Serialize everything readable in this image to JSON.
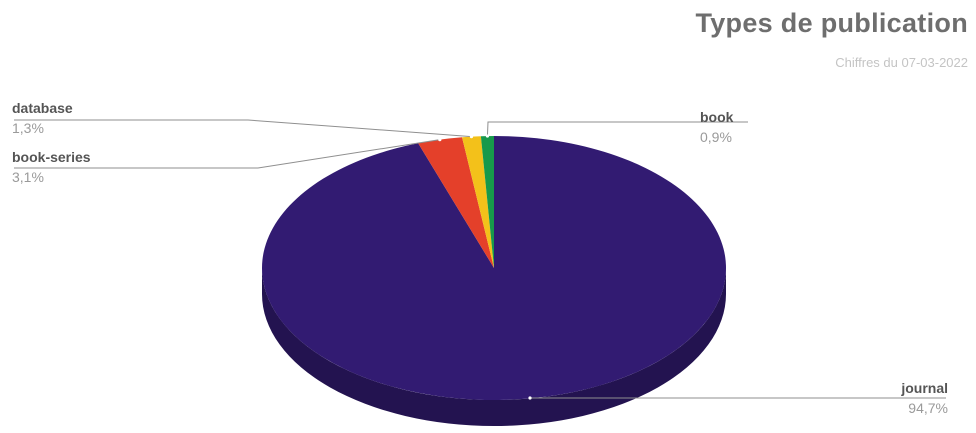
{
  "chart_data": {
    "type": "pie",
    "title": "Types de publication",
    "subtitle": "Chiffres du 07-03-2022",
    "slices": [
      {
        "label": "journal",
        "value": 94.7,
        "value_label": "94,7%",
        "color": "#321b72"
      },
      {
        "label": "book-series",
        "value": 3.1,
        "value_label": "3,1%",
        "color": "#e4402a"
      },
      {
        "label": "database",
        "value": 1.3,
        "value_label": "1,3%",
        "color": "#f3c11a"
      },
      {
        "label": "book",
        "value": 0.9,
        "value_label": "0,9%",
        "color": "#17994b"
      }
    ],
    "legend": "none"
  }
}
